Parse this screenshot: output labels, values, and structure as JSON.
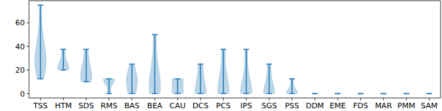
{
  "chart_data": {
    "type": "violin",
    "categories": [
      "TSS",
      "HTM",
      "SDS",
      "RMS",
      "BAS",
      "BEA",
      "CAU",
      "DCS",
      "PCS",
      "IPS",
      "SGS",
      "PSS",
      "DDM",
      "EME",
      "FDS",
      "MAR",
      "PMM",
      "SAM"
    ],
    "samples": [
      [
        12.5,
        25,
        25,
        25,
        25,
        37.5,
        37.5,
        50,
        75
      ],
      [
        20,
        20,
        22,
        25,
        37.5
      ],
      [
        10,
        12.5,
        12.5,
        20,
        25,
        37.5
      ],
      [
        0,
        10,
        12.5,
        12.5,
        12.5
      ],
      [
        0,
        0,
        12.5,
        12.5,
        12.5,
        25
      ],
      [
        0,
        0,
        0,
        12.5,
        12.5,
        25,
        50
      ],
      [
        0,
        0,
        12.5,
        12.5
      ],
      [
        0,
        0,
        0,
        12.5,
        25
      ],
      [
        0,
        0,
        0,
        12.5,
        37.5
      ],
      [
        0,
        0,
        0,
        0,
        12.5,
        37.5
      ],
      [
        0,
        0,
        0,
        0,
        12.5,
        25
      ],
      [
        0,
        0,
        0,
        0,
        12.5
      ],
      [
        0,
        0,
        0
      ],
      [
        0,
        0,
        0
      ],
      [
        0,
        0,
        0
      ],
      [
        0,
        0,
        0
      ],
      [
        0,
        0,
        0
      ],
      [
        0,
        0,
        0
      ]
    ],
    "color": "#1f77b4",
    "ylim": [
      -3.75,
      78.75
    ],
    "yticks": [
      0,
      20,
      40,
      60
    ]
  }
}
